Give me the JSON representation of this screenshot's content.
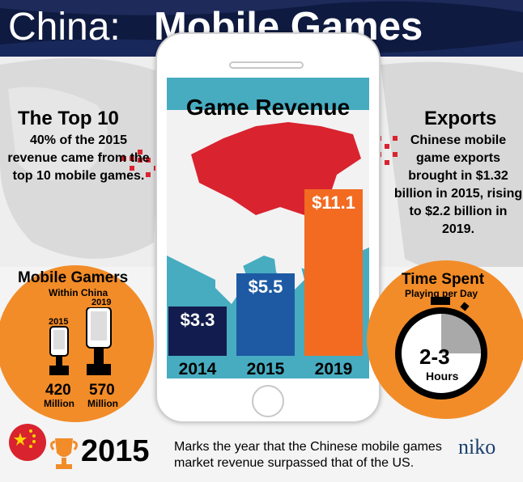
{
  "header": {
    "title_prefix": "China:",
    "title_main": "Mobile Games"
  },
  "revenue": {
    "title": "Game Revenue",
    "bars": [
      {
        "year": "2014",
        "label": "$3.3",
        "value": 3.3,
        "color": "#131c4e"
      },
      {
        "year": "2015",
        "label": "$5.5",
        "value": 5.5,
        "color": "#1d5aa3"
      },
      {
        "year": "2019",
        "label": "$11.1",
        "value": 11.1,
        "color": "#f26b21"
      }
    ]
  },
  "top10": {
    "heading": "The Top 10",
    "body": "40% of the 2015 revenue came from the top 10 mobile games."
  },
  "exports": {
    "heading": "Exports",
    "body": "Chinese mobile game exports brought in $1.32 billion in 2015, rising to $2.2 billion in 2019."
  },
  "gamers": {
    "heading": "Mobile Gamers",
    "subheading": "Within China",
    "items": [
      {
        "year": "2015",
        "count": "420",
        "unit": "Million"
      },
      {
        "year": "2019",
        "count": "570",
        "unit": "Million"
      }
    ]
  },
  "time_spent": {
    "heading": "Time Spent",
    "subheading": "Playing per Day",
    "value": "2-3",
    "unit": "Hours"
  },
  "footer": {
    "year": "2015",
    "text": "Marks the year that the Chinese mobile games market revenue surpassed that of the US.",
    "brand": "niko"
  },
  "colors": {
    "navy": "#101a3e",
    "orange": "#f28c28",
    "red": "#d9232e",
    "teal": "#47acc0"
  }
}
